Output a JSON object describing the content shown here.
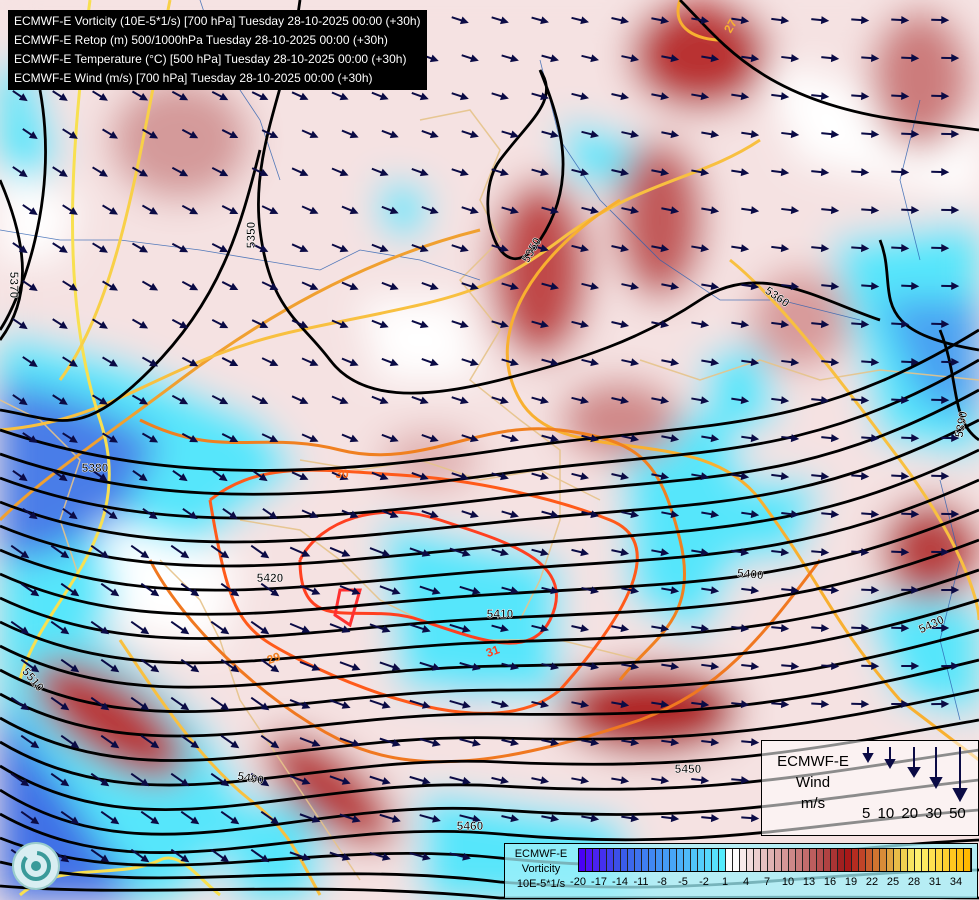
{
  "header": {
    "lines": [
      "ECMWF-E Vorticity (10E-5*1/s) [700 hPa] Tuesday 28-10-2025 00:00 (+30h)",
      "ECMWF-E Retop (m) 500/1000hPa Tuesday 28-10-2025 00:00 (+30h)",
      "ECMWF-E Temperature (°C) [500 hPa] Tuesday 28-10-2025 00:00 (+30h)",
      "ECMWF-E Wind (m/s) [700 hPa] Tuesday 28-10-2025 00:00 (+30h)"
    ]
  },
  "map": {
    "geopotential_labels": [
      "5350",
      "5370",
      "5350",
      "5360",
      "5380",
      "5390",
      "5420",
      "5410",
      "5400",
      "5430",
      "5450",
      "5460",
      "5490",
      "5510"
    ],
    "temperature_labels": [
      "27",
      "30",
      "29",
      "31"
    ],
    "colors": {
      "geopotential": "#000000",
      "wind_arrow": "#0b0b45",
      "borders": "#e6c38a",
      "rivers": "#2a5fb0"
    }
  },
  "wind_legend": {
    "title": [
      "ECMWF-E",
      "Wind",
      "m/s"
    ],
    "values": [
      "5",
      "10",
      "20",
      "30",
      "50"
    ]
  },
  "colorbar": {
    "title": [
      "ECMWF-E",
      "Vorticity",
      "10E-5*1/s"
    ],
    "ticks": [
      "-20",
      "-17",
      "-14",
      "-11",
      "-8",
      "-5",
      "-2",
      "1",
      "4",
      "7",
      "10",
      "13",
      "16",
      "19",
      "22",
      "25",
      "28",
      "31",
      "34"
    ],
    "colors": [
      "#4a00f5",
      "#4f10f5",
      "#4a22f0",
      "#4530ee",
      "#4040ec",
      "#3c4fe8",
      "#3a5cea",
      "#3c68ec",
      "#3e72ee",
      "#3f7ef0",
      "#4188f2",
      "#4292f4",
      "#459cf5",
      "#48a6f6",
      "#4bb0f8",
      "#4fbaf8",
      "#50c4f9",
      "#54cefa",
      "#56d8fb",
      "#58e2fc",
      "#55ecfd",
      "#ffffff",
      "#ffffff",
      "#f8eaea",
      "#f2dcdc",
      "#eccece",
      "#e6c0c0",
      "#e0b2b2",
      "#daa4a4",
      "#d49696",
      "#ce8888",
      "#c87a7a",
      "#c26c6c",
      "#bc5e5e",
      "#b65050",
      "#b04242",
      "#aa3434",
      "#a02020",
      "#a81818",
      "#b42c20",
      "#c04428",
      "#c85c2c",
      "#d07430",
      "#d88c38",
      "#e0a440",
      "#e8bc48",
      "#f0d050",
      "#f8e460",
      "#fff070",
      "#ffe860",
      "#ffe050",
      "#ffd840",
      "#ffd030",
      "#ffc820",
      "#ffc010",
      "#ffb800"
    ]
  }
}
